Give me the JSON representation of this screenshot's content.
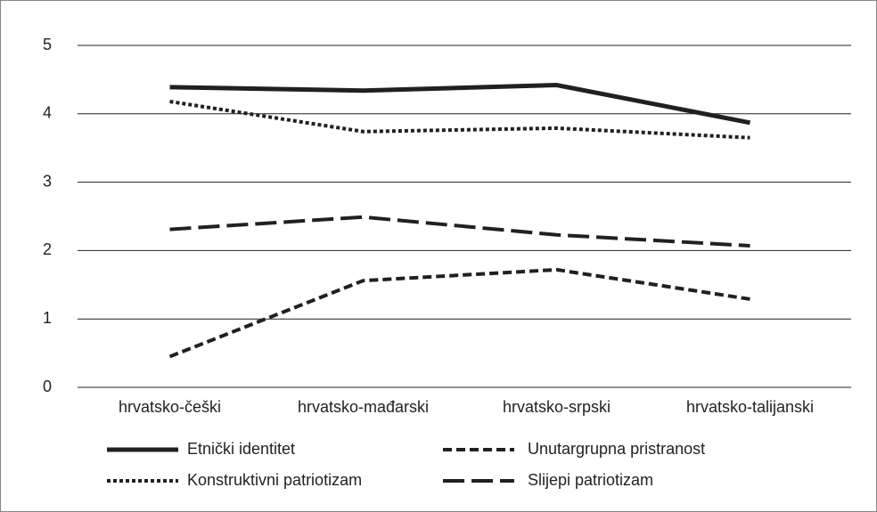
{
  "chart_data": {
    "type": "line",
    "categories": [
      "hrvatsko-češki",
      "hrvatsko-mađarski",
      "hrvatsko-srpski",
      "hrvatsko-talijanski"
    ],
    "series": [
      {
        "name": "Etnički identitet",
        "color": "#231f20",
        "dash": "solid",
        "values": [
          4.39,
          4.34,
          4.42,
          3.87
        ]
      },
      {
        "name": "Unutargrupna pristranost",
        "color": "#231f20",
        "dash": "short-dash",
        "values": [
          0.45,
          1.56,
          1.72,
          1.29
        ]
      },
      {
        "name": "Konstruktivni patriotizam",
        "color": "#231f20",
        "dash": "dotted",
        "values": [
          4.18,
          3.74,
          3.79,
          3.65
        ]
      },
      {
        "name": "Slijepi patriotizam",
        "color": "#231f20",
        "dash": "long-dash",
        "values": [
          2.31,
          2.49,
          2.23,
          2.07
        ]
      }
    ],
    "ylim": [
      0,
      5
    ],
    "yticks": [
      0,
      1,
      2,
      3,
      4,
      5
    ],
    "grid": true,
    "legend": "bottom"
  }
}
